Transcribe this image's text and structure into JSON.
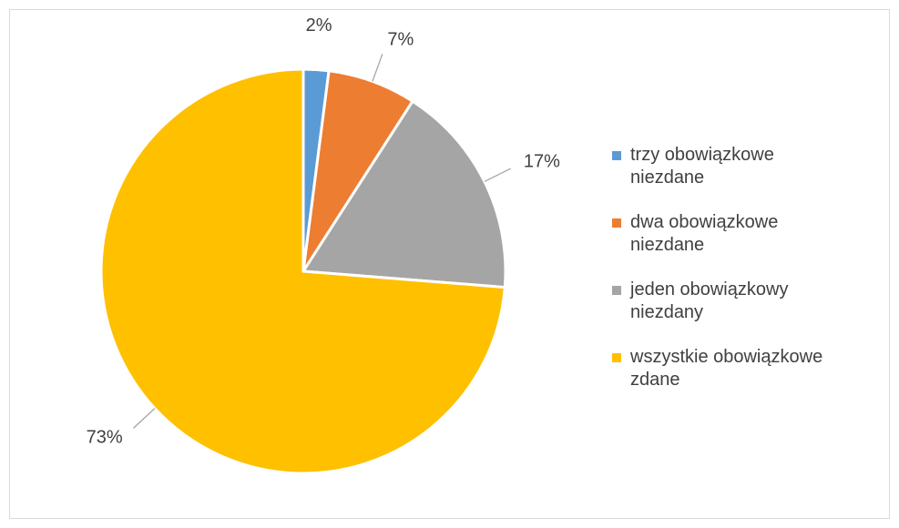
{
  "chart_data": {
    "type": "pie",
    "categories": [
      "trzy obowiązkowe niezdane",
      "dwa obowiązkowe niezdane",
      "jeden obowiązkowy niezdany",
      "wszystkie obowiązkowe zdane"
    ],
    "values": [
      2,
      7,
      17,
      73
    ],
    "value_labels": [
      "2%",
      "7%",
      "17%",
      "73%"
    ],
    "colors": [
      "#5b9bd5",
      "#ed7d31",
      "#a5a5a5",
      "#ffc000"
    ],
    "legend": "right"
  }
}
